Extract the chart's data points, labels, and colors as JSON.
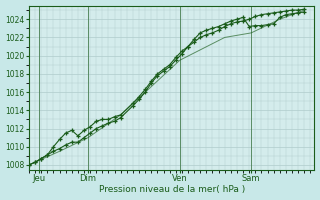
{
  "title": "Pression niveau de la mer( hPa )",
  "bg_color": "#c8e8e8",
  "plot_bg_color": "#d4ecec",
  "grid_color": "#b0cccc",
  "line_color": "#1a5c1a",
  "ylim": [
    1007.5,
    1025.5
  ],
  "ytick_vals": [
    1008,
    1010,
    1012,
    1014,
    1016,
    1018,
    1020,
    1022,
    1024
  ],
  "xlim": [
    0,
    280
  ],
  "day_labels": [
    "Jeu",
    "Dim",
    "Ven",
    "Sam"
  ],
  "day_positions": [
    10,
    58,
    148,
    218
  ],
  "vline_positions": [
    10,
    58,
    148,
    218
  ],
  "total_hours": 280,
  "s1_x": [
    0,
    6,
    12,
    18,
    24,
    30,
    36,
    42,
    48,
    54,
    60,
    66,
    72,
    78,
    84,
    90,
    102,
    108,
    114,
    120,
    126,
    132,
    138,
    144,
    150,
    156,
    162,
    168,
    174,
    180,
    186,
    192,
    198,
    204,
    210,
    216,
    222,
    228,
    234,
    240,
    246,
    252,
    258,
    264,
    270
  ],
  "s1_y": [
    1008.0,
    1008.3,
    1008.7,
    1009.1,
    1009.5,
    1009.8,
    1010.2,
    1010.5,
    1010.5,
    1011.0,
    1011.5,
    1012.0,
    1012.3,
    1012.6,
    1012.8,
    1013.2,
    1014.5,
    1015.2,
    1016.0,
    1017.0,
    1017.8,
    1018.3,
    1018.8,
    1019.5,
    1020.2,
    1021.0,
    1021.5,
    1022.0,
    1022.3,
    1022.5,
    1022.8,
    1023.2,
    1023.5,
    1023.7,
    1023.8,
    1024.0,
    1024.3,
    1024.5,
    1024.6,
    1024.7,
    1024.8,
    1024.9,
    1025.0,
    1025.0,
    1025.1
  ],
  "s2_x": [
    0,
    6,
    12,
    18,
    24,
    30,
    36,
    42,
    48,
    54,
    60,
    66,
    72,
    78,
    84,
    90,
    102,
    108,
    114,
    120,
    126,
    132,
    138,
    144,
    150,
    156,
    162,
    168,
    174,
    180,
    186,
    192,
    198,
    204,
    210,
    216,
    222,
    228,
    234,
    240,
    246,
    252,
    258,
    264,
    270
  ],
  "s2_y": [
    1008.0,
    1008.3,
    1008.7,
    1009.1,
    1010.0,
    1010.8,
    1011.5,
    1011.8,
    1011.2,
    1011.8,
    1012.2,
    1012.8,
    1013.0,
    1013.0,
    1013.3,
    1013.5,
    1014.8,
    1015.5,
    1016.3,
    1017.2,
    1018.0,
    1018.5,
    1019.0,
    1019.8,
    1020.5,
    1021.0,
    1021.8,
    1022.5,
    1022.8,
    1023.0,
    1023.2,
    1023.5,
    1023.8,
    1024.0,
    1024.2,
    1023.2,
    1023.3,
    1023.3,
    1023.4,
    1023.5,
    1024.2,
    1024.5,
    1024.6,
    1024.7,
    1024.8
  ],
  "s3_x": [
    0,
    30,
    58,
    90,
    148,
    192,
    218,
    246,
    270
  ],
  "s3_y": [
    1008.0,
    1009.5,
    1011.0,
    1013.5,
    1019.5,
    1022.0,
    1022.5,
    1024.0,
    1025.0
  ]
}
